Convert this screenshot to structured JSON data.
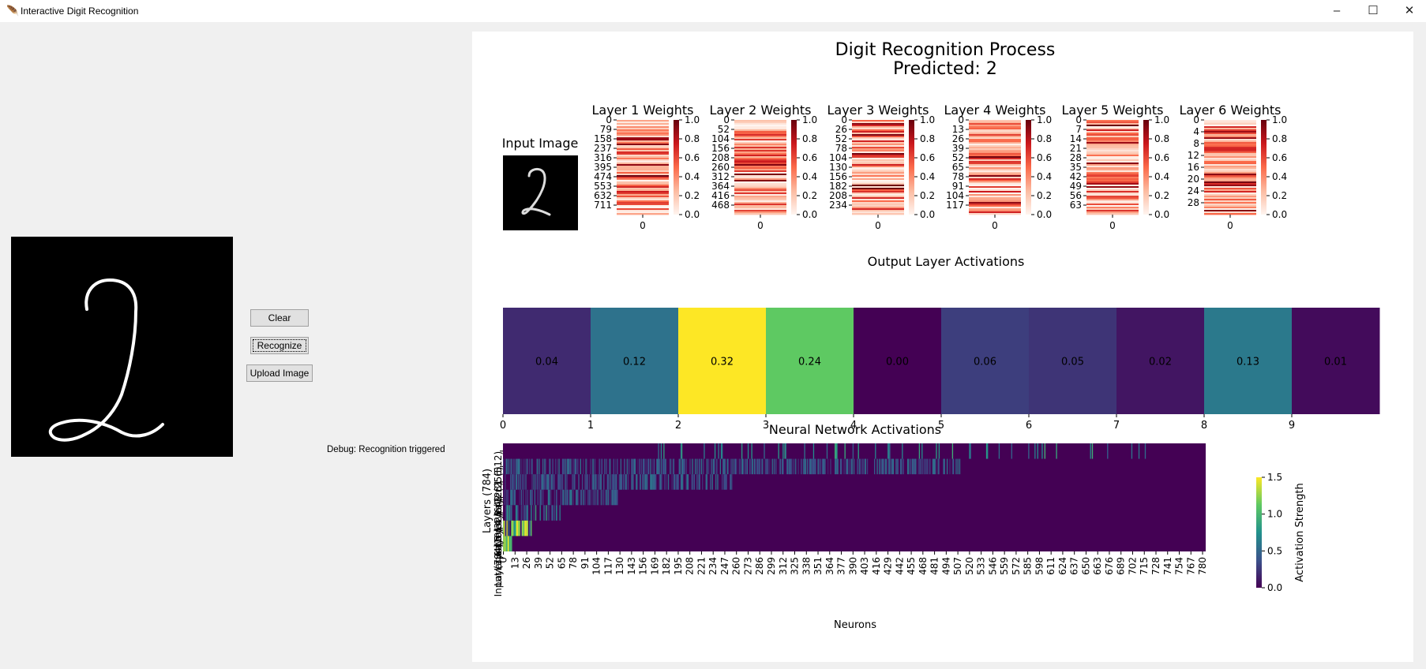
{
  "window": {
    "title": "Interactive Digit Recognition",
    "app_icon": "feather-icon",
    "controls": [
      "minimize-icon",
      "maximize-icon",
      "close-icon"
    ]
  },
  "controls": {
    "clear_label": "Clear",
    "recognize_label": "Recognize",
    "upload_label": "Upload Image",
    "debug_text": "Debug: Recognition triggered"
  },
  "figure": {
    "title": "Digit Recognition Process",
    "subtitle": "Predicted: 2",
    "input_image_title": "Input Image"
  },
  "chart_data": [
    {
      "type": "heatmap",
      "title": "Layer 1 Weights",
      "yticks": [
        "0",
        "79",
        "158",
        "237",
        "316",
        "395",
        "474",
        "553",
        "632",
        "711"
      ],
      "xticks": [
        "0"
      ],
      "colorbar": {
        "ticks": [
          "0.0",
          "0.2",
          "0.4",
          "0.6",
          "0.8",
          "1.0"
        ],
        "range": [
          0,
          1
        ],
        "cmap": "Reds"
      }
    },
    {
      "type": "heatmap",
      "title": "Layer 2 Weights",
      "yticks": [
        "0",
        "52",
        "104",
        "156",
        "208",
        "260",
        "312",
        "364",
        "416",
        "468"
      ],
      "xticks": [
        "0"
      ],
      "colorbar": {
        "ticks": [
          "0.0",
          "0.2",
          "0.4",
          "0.6",
          "0.8",
          "1.0"
        ],
        "range": [
          0,
          1
        ],
        "cmap": "Reds"
      }
    },
    {
      "type": "heatmap",
      "title": "Layer 3 Weights",
      "yticks": [
        "0",
        "26",
        "52",
        "78",
        "104",
        "130",
        "156",
        "182",
        "208",
        "234"
      ],
      "xticks": [
        "0"
      ],
      "colorbar": {
        "ticks": [
          "0.0",
          "0.2",
          "0.4",
          "0.6",
          "0.8",
          "1.0"
        ],
        "range": [
          0,
          1
        ],
        "cmap": "Reds"
      }
    },
    {
      "type": "heatmap",
      "title": "Layer 4 Weights",
      "yticks": [
        "0",
        "13",
        "26",
        "39",
        "52",
        "65",
        "78",
        "91",
        "104",
        "117"
      ],
      "xticks": [
        "0"
      ],
      "colorbar": {
        "ticks": [
          "0.0",
          "0.2",
          "0.4",
          "0.6",
          "0.8",
          "1.0"
        ],
        "range": [
          0,
          1
        ],
        "cmap": "Reds"
      }
    },
    {
      "type": "heatmap",
      "title": "Layer 5 Weights",
      "yticks": [
        "0",
        "7",
        "14",
        "21",
        "28",
        "35",
        "42",
        "49",
        "56",
        "63"
      ],
      "xticks": [
        "0"
      ],
      "colorbar": {
        "ticks": [
          "0.0",
          "0.2",
          "0.4",
          "0.6",
          "0.8",
          "1.0"
        ],
        "range": [
          0,
          1
        ],
        "cmap": "Reds"
      }
    },
    {
      "type": "heatmap",
      "title": "Layer 6 Weights",
      "yticks": [
        "0",
        "4",
        "8",
        "12",
        "16",
        "20",
        "24",
        "28"
      ],
      "xticks": [
        "0"
      ],
      "colorbar": {
        "ticks": [
          "0.0",
          "0.2",
          "0.4",
          "0.6",
          "0.8",
          "1.0"
        ],
        "range": [
          0,
          1
        ],
        "cmap": "Reds"
      }
    },
    {
      "type": "heatmap",
      "title": "Output Layer Activations",
      "categories": [
        "0",
        "1",
        "2",
        "3",
        "4",
        "5",
        "6",
        "7",
        "8",
        "9"
      ],
      "values": [
        0.04,
        0.12,
        0.32,
        0.24,
        0.0,
        0.06,
        0.05,
        0.02,
        0.13,
        0.01
      ],
      "labels": [
        "0.04",
        "0.12",
        "0.32",
        "0.24",
        "0.00",
        "0.06",
        "0.05",
        "0.02",
        "0.13",
        "0.01"
      ],
      "cmap": "viridis"
    },
    {
      "type": "heatmap",
      "title": "Neural Network Activations",
      "xlabel": "Neurons",
      "ylabel": "Layers (784)",
      "xticks": [
        "0",
        "13",
        "26",
        "39",
        "52",
        "65",
        "78",
        "91",
        "104",
        "117",
        "130",
        "143",
        "156",
        "169",
        "182",
        "195",
        "208",
        "221",
        "234",
        "247",
        "260",
        "273",
        "286",
        "299",
        "312",
        "325",
        "338",
        "351",
        "364",
        "377",
        "390",
        "403",
        "416",
        "429",
        "442",
        "455",
        "468",
        "481",
        "494",
        "507",
        "520",
        "533",
        "546",
        "559",
        "572",
        "585",
        "598",
        "611",
        "624",
        "637",
        "650",
        "663",
        "676",
        "689",
        "702",
        "715",
        "728",
        "741",
        "754",
        "767",
        "780"
      ],
      "yticks": [
        "Layer 1 (512)",
        "Layer 2 (256)",
        "Layer 3 (128)",
        "Layer 4 (64)",
        "Layer 5 (32)",
        "Layer 6 (10)",
        "Input (784)"
      ],
      "colorbar": {
        "label": "Activation Strength",
        "ticks": [
          "0.0",
          "0.5",
          "1.0",
          "1.5"
        ],
        "range": [
          0,
          1.5
        ],
        "cmap": "viridis"
      }
    }
  ]
}
